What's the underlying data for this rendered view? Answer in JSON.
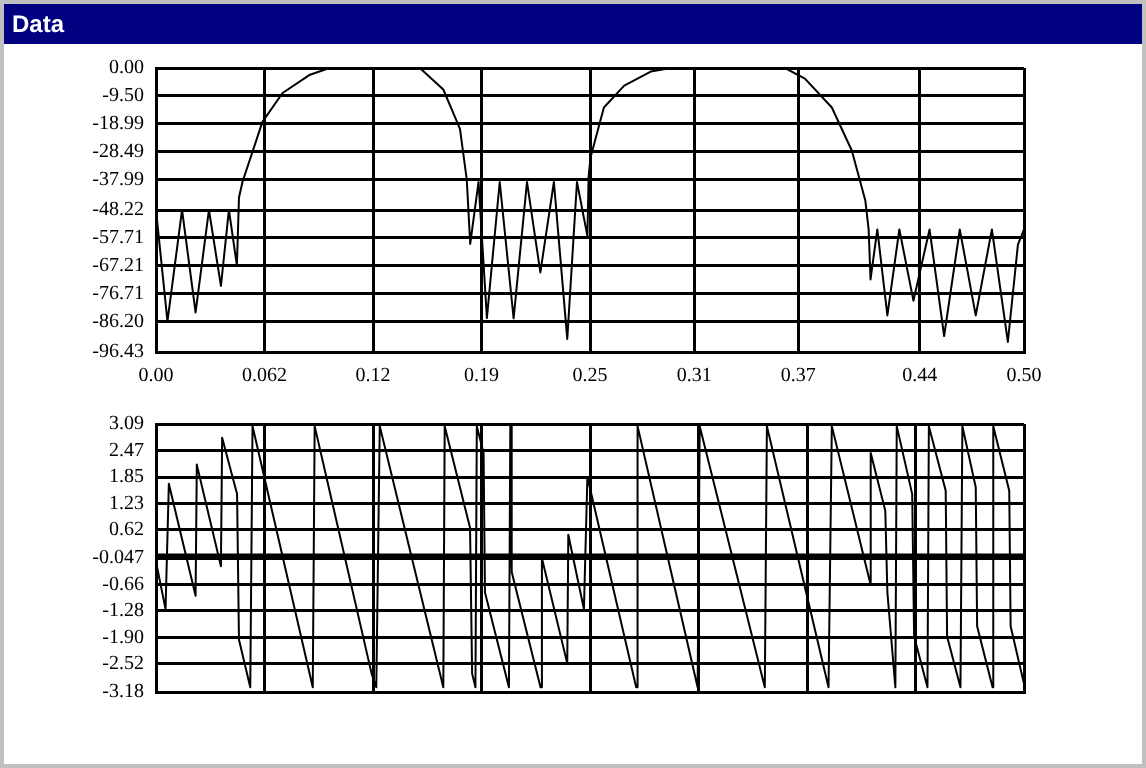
{
  "chart_data": [
    {
      "type": "line",
      "title": "Data",
      "xlim": [
        0,
        0.5
      ],
      "xticks": [
        {
          "value": 0,
          "label": "0.00"
        },
        {
          "value": 0.0625,
          "label": "0.062"
        },
        {
          "value": 0.125,
          "label": "0.12"
        },
        {
          "value": 0.1875,
          "label": "0.19"
        },
        0.25,
        0.31,
        0.37,
        0.44,
        {
          "value": 0.5,
          "label": "0.50"
        }
      ],
      "ylim": [
        -96.43,
        0
      ],
      "yticks": [
        {
          "value": 0,
          "label": "0.00"
        },
        {
          "value": -9.5,
          "label": "-9.50"
        },
        -18.99,
        -28.49,
        -37.99,
        -48.22,
        -57.71,
        -67.21,
        -76.71,
        {
          "value": -86.2,
          "label": "-86.20"
        },
        -96.43
      ],
      "grid": true,
      "series": [
        {
          "color": "#000000",
          "x": [
            0,
            0.0066,
            0.015,
            0.0228,
            0.0305,
            0.0374,
            0.042,
            0.0466,
            0.0478,
            0.0498,
            0.0613,
            0.0729,
            0.0883,
            0.0999,
            0.152,
            0.1655,
            0.1751,
            0.179,
            0.181,
            0.1858,
            0.1906,
            0.198,
            0.206,
            0.2137,
            0.2214,
            0.2292,
            0.2369,
            0.2425,
            0.2485,
            0.2492,
            0.2503,
            0.258,
            0.2697,
            0.285,
            0.2967,
            0.3623,
            0.3738,
            0.3893,
            0.4008,
            0.4086,
            0.4105,
            0.4116,
            0.4155,
            0.4213,
            0.4282,
            0.4363,
            0.4456,
            0.454,
            0.463,
            0.4722,
            0.4815,
            0.4907,
            0.4965,
            0.5
          ],
          "values": [
            -48.2,
            -86,
            -48.2,
            -83,
            -48.2,
            -74,
            -48.2,
            -67,
            -44,
            -38.7,
            -18.3,
            -8.5,
            -2.4,
            0,
            0,
            -7.3,
            -20.7,
            -37.8,
            -59.7,
            -38.7,
            -84.9,
            -38.7,
            -85,
            -38.7,
            -69.4,
            -38.7,
            -92,
            -38.7,
            -57,
            -37,
            -30.4,
            -13.4,
            -6,
            -1.2,
            0,
            0,
            -3.6,
            -13.4,
            -28,
            -45,
            -54.8,
            -71.8,
            -54.8,
            -84,
            -54.8,
            -79,
            -54.8,
            -91,
            -54.8,
            -84,
            -54.8,
            -93,
            -60,
            -54.8
          ]
        }
      ]
    },
    {
      "type": "line",
      "xlim": [
        0,
        0.5
      ],
      "xticks": [
        {
          "value": 0,
          "label": null
        },
        {
          "value": 0.0625,
          "label": null
        },
        {
          "value": 0.125,
          "label": null
        },
        {
          "value": 0.1875,
          "label": null
        },
        {
          "value": 0.25,
          "label": null
        },
        {
          "value": 0.3125,
          "label": null
        },
        {
          "value": 0.375,
          "label": null
        },
        {
          "value": 0.4375,
          "label": null
        },
        {
          "value": 0.5,
          "label": null
        }
      ],
      "ylim": [
        -3.18,
        3.09
      ],
      "yticks": [
        3.09,
        2.47,
        1.85,
        1.23,
        0.62,
        -0.047,
        -0.66,
        -1.28,
        {
          "value": -1.9,
          "label": "-1.90"
        },
        -2.52,
        -3.18
      ],
      "grid": true,
      "tick_labels": "y",
      "ref_lines": [
        {
          "axis": "y",
          "value": 0,
          "color": "#000000"
        }
      ],
      "series": [
        {
          "color": "#000000",
          "x": [
            0,
            0.0055,
            0.0074,
            0.0228,
            0.0235,
            0.0374,
            0.0381,
            0.0467,
            0.0478,
            0.0543,
            0.0556,
            0.0903,
            0.0914,
            0.1242,
            0.1269,
            0.1289,
            0.1655,
            0.1663,
            0.1809,
            0.1821,
            0.184,
            0.1848,
            0.1887,
            0.1895,
            0.2033,
            0.2041,
            0.2049,
            0.2215,
            0.2223,
            0.2369,
            0.2375,
            0.2465,
            0.2485,
            0.2766,
            0.2774,
            0.312,
            0.3132,
            0.3507,
            0.3519,
            0.3874,
            0.3893,
            0.4113,
            0.4117,
            0.4201,
            0.4213,
            0.4259,
            0.4267,
            0.4356,
            0.4367,
            0.4444,
            0.4452,
            0.4549,
            0.4557,
            0.4634,
            0.4645,
            0.4722,
            0.473,
            0.4819,
            0.4823,
            0.4915,
            0.4923,
            0.5
          ],
          "values": [
            -0.13,
            -1.24,
            1.69,
            -0.93,
            2.14,
            -0.24,
            2.77,
            1.45,
            -1.96,
            -3.07,
            3.04,
            -3.07,
            3.04,
            -2.75,
            -3.07,
            3.04,
            -3.07,
            3.04,
            0.66,
            -2.75,
            -3.07,
            3.04,
            2.41,
            -0.85,
            -3.07,
            3.04,
            -0.37,
            -3.07,
            -0.05,
            -2.51,
            0.5,
            -1.24,
            1.85,
            -3.07,
            3.04,
            -3.07,
            3.04,
            -3.07,
            3.04,
            -3.07,
            3.04,
            -0.61,
            2.41,
            1.06,
            -0.85,
            -3.07,
            3.04,
            1.45,
            -1.88,
            -3.07,
            3.04,
            1.53,
            -1.88,
            -3.07,
            3.04,
            1.61,
            -1.64,
            -3.07,
            3.04,
            1.53,
            -1.64,
            -2.99
          ]
        }
      ]
    }
  ]
}
